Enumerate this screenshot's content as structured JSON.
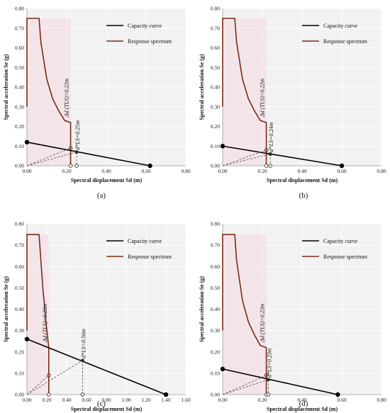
{
  "colors": {
    "capacity": "#000000",
    "response": "#7a2c14",
    "plot_bg": "#f2f2f2",
    "grid": "#ffffff",
    "shade": "#f5d3df",
    "dashed": "#555555"
  },
  "chart_data": [
    {
      "panel": "(a)",
      "type": "line",
      "xlabel": "Spectral displacement Sd (m)",
      "ylabel": "Spectral acceleration Se (g)",
      "xlim": [
        0,
        0.8
      ],
      "ylim": [
        0,
        0.8
      ],
      "xticks": [
        "0.00",
        "0.20",
        "0.40",
        "0.60",
        "0.80"
      ],
      "yticks": [
        "0.00",
        "0.10",
        "0.20",
        "0.30",
        "0.40",
        "0.50",
        "0.60",
        "0.70",
        "0.80"
      ],
      "legend": [
        "Capacity curve",
        "Response spectrum"
      ],
      "legend_position": "top-right",
      "series": [
        {
          "name": "Capacity curve",
          "x": [
            0,
            0.62
          ],
          "y": [
            0.12,
            0
          ]
        },
        {
          "name": "Response spectrum",
          "x": [
            0.0,
            0.0,
            0.009,
            0.061,
            0.07,
            0.1,
            0.13,
            0.16,
            0.19,
            0.22,
            0.22
          ],
          "y": [
            0.3,
            0.75,
            0.75,
            0.75,
            0.63,
            0.44,
            0.34,
            0.28,
            0.23,
            0.22,
            0.0
          ]
        }
      ],
      "annotations": [
        {
          "label": "Δd (TLS)=0.22m",
          "x": 0.22,
          "y": 0.1
        },
        {
          "label": "d*LS=0.25m",
          "x": 0.25,
          "y": 0.07
        }
      ],
      "markers": {
        "capacity_ends": [
          [
            0,
            0.12
          ],
          [
            0.62,
            0
          ]
        ],
        "intersection": [
          0.25,
          0.07
        ],
        "spectrum_point": [
          0.22,
          0.09
        ],
        "zero_points": [
          0.22,
          0.25
        ]
      }
    },
    {
      "panel": "(b)",
      "type": "line",
      "xlabel": "Spectral displacement Sd (m)",
      "ylabel": "Spectral acceleration Se (g)",
      "xlim": [
        0,
        0.8
      ],
      "ylim": [
        0,
        0.8
      ],
      "xticks": [
        "0.00",
        "0.20",
        "0.40",
        "0.60",
        "0.80"
      ],
      "yticks": [
        "0.00",
        "0.10",
        "0.20",
        "0.30",
        "0.40",
        "0.50",
        "0.60",
        "0.70",
        "0.80"
      ],
      "legend": [
        "Capacity curve",
        "Response spectrum"
      ],
      "legend_position": "top-right",
      "series": [
        {
          "name": "Capacity curve",
          "x": [
            0,
            0.6
          ],
          "y": [
            0.1,
            0
          ]
        },
        {
          "name": "Response spectrum",
          "x": [
            0.0,
            0.0,
            0.009,
            0.061,
            0.07,
            0.1,
            0.13,
            0.16,
            0.19,
            0.22,
            0.22
          ],
          "y": [
            0.3,
            0.75,
            0.75,
            0.75,
            0.63,
            0.44,
            0.34,
            0.28,
            0.23,
            0.22,
            0.0
          ]
        }
      ],
      "annotations": [
        {
          "label": "Δd (TLS)=0.22m",
          "x": 0.22,
          "y": 0.1
        },
        {
          "label": "d*LS=0.24m",
          "x": 0.24,
          "y": 0.06
        }
      ],
      "markers": {
        "capacity_ends": [
          [
            0,
            0.1
          ],
          [
            0.6,
            0
          ]
        ],
        "intersection": [
          0.24,
          0.06
        ],
        "spectrum_point": [
          0.22,
          0.08
        ],
        "zero_points": [
          0.22,
          0.24
        ]
      }
    },
    {
      "panel": "(c)",
      "type": "line",
      "xlabel": "Spectral displacement Sd (m)",
      "ylabel": "Spectral acceleration Se (g)",
      "xlim": [
        0,
        1.6
      ],
      "ylim": [
        0,
        0.8
      ],
      "xticks": [
        "0.00",
        "0.20",
        "0.40",
        "0.60",
        "0.80",
        "1.00",
        "1.20",
        "1.40",
        "1.60"
      ],
      "yticks": [
        "0.00",
        "0.10",
        "0.20",
        "0.30",
        "0.40",
        "0.50",
        "0.60",
        "0.70",
        "0.80"
      ],
      "legend": [
        "Capacity curve",
        "Response spectrum"
      ],
      "legend_position": "top-right",
      "series": [
        {
          "name": "Capacity curve",
          "x": [
            0,
            1.4
          ],
          "y": [
            0.26,
            0
          ]
        },
        {
          "name": "Response spectrum",
          "x": [
            0.0,
            0.0,
            0.018,
            0.122,
            0.14,
            0.16,
            0.18,
            0.2,
            0.22,
            0.22
          ],
          "y": [
            0.3,
            0.75,
            0.75,
            0.75,
            0.63,
            0.5,
            0.4,
            0.3,
            0.22,
            0.0
          ]
        }
      ],
      "annotations": [
        {
          "label": "Δd (TLS)=0.22m",
          "x": 0.22,
          "y": 0.22
        },
        {
          "label": "d*LS=0.56m",
          "x": 0.56,
          "y": 0.16
        }
      ],
      "markers": {
        "capacity_ends": [
          [
            0,
            0.26
          ],
          [
            1.4,
            0
          ]
        ],
        "intersection": [
          0.56,
          0.16
        ],
        "spectrum_point": [
          0.22,
          0.09
        ],
        "zero_points": [
          0.22,
          0.56
        ]
      }
    },
    {
      "panel": "(d)",
      "type": "line",
      "xlabel": "Spectral displacement Sd (m)",
      "ylabel": "Spectral acceleration Se (g)",
      "xlim": [
        0,
        0.8
      ],
      "ylim": [
        0,
        0.8
      ],
      "xticks": [
        "0.00",
        "0.20",
        "0.40",
        "0.60",
        "0.80"
      ],
      "yticks": [
        "0.00",
        "0.10",
        "0.20",
        "0.30",
        "0.40",
        "0.50",
        "0.60",
        "0.70",
        "0.80"
      ],
      "legend": [
        "Capacity curve",
        "Response spectrum"
      ],
      "legend_position": "top-right",
      "series": [
        {
          "name": "Capacity curve",
          "x": [
            0,
            0.58
          ],
          "y": [
            0.12,
            0
          ]
        },
        {
          "name": "Response spectrum",
          "x": [
            0.0,
            0.0,
            0.009,
            0.061,
            0.07,
            0.1,
            0.13,
            0.16,
            0.19,
            0.22,
            0.22
          ],
          "y": [
            0.3,
            0.75,
            0.75,
            0.75,
            0.63,
            0.44,
            0.34,
            0.28,
            0.23,
            0.22,
            0.0
          ]
        }
      ],
      "annotations": [
        {
          "label": "Δd (TLS)=0.22m",
          "x": 0.22,
          "y": 0.1
        },
        {
          "label": "d*LS=0.23m",
          "x": 0.23,
          "y": 0.07
        }
      ],
      "markers": {
        "capacity_ends": [
          [
            0,
            0.12
          ],
          [
            0.58,
            0
          ]
        ],
        "intersection": [
          0.23,
          0.07
        ],
        "spectrum_point": [
          0.22,
          0.09
        ],
        "zero_points": [
          0.22,
          0.23
        ]
      }
    }
  ]
}
